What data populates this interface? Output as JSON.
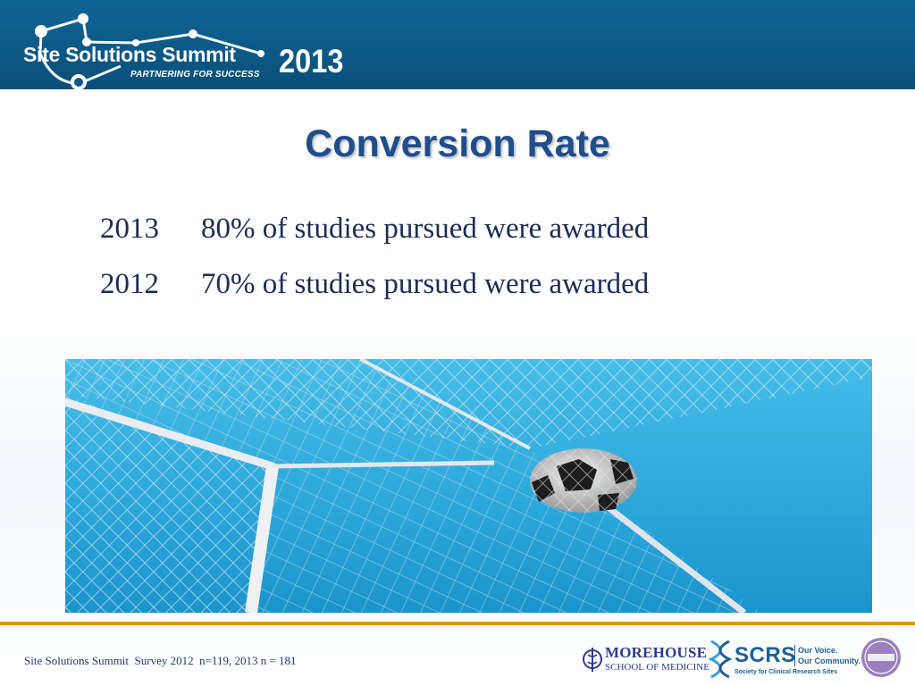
{
  "header": {
    "logo_title": "Site Solutions Summit",
    "logo_tagline": "PARTNERING FOR SUCCESS",
    "logo_year": "2013",
    "band_color": "#0d5a86"
  },
  "title": "Conversion Rate",
  "stats": [
    {
      "year": "2013",
      "text": "80% of studies pursued were awarded"
    },
    {
      "year": "2012",
      "text": "70% of studies pursued were awarded"
    }
  ],
  "photo": {
    "icon": "soccer-ball-in-goal-net-photo"
  },
  "footer": {
    "source": "Site Solutions Summit  Survey 2012  n=119, 2013 n = 181",
    "rule_color": "#e8931f",
    "morehouse_name": "MOREHOUSE",
    "morehouse_sub": "SCHOOL OF MEDICINE",
    "scrs_name": "SCRS",
    "scrs_tag1": "Our Voice.",
    "scrs_tag2": "Our Community.",
    "scrs_sub": "Society for Clinical Research Sites",
    "badge_icon": "accredited-provider-seal-icon"
  },
  "colors": {
    "title": "#1f4e8c",
    "body_text": "#1b2c55",
    "sky": "#2fa9dc"
  }
}
